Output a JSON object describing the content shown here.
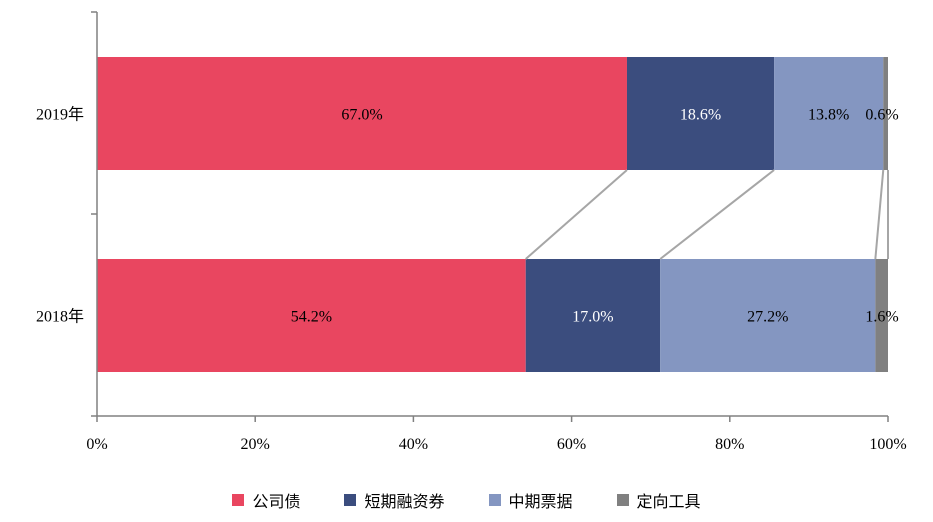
{
  "chart_data": {
    "type": "bar",
    "orientation": "horizontal",
    "stacked": true,
    "normalized": true,
    "categories": [
      "2019年",
      "2018年"
    ],
    "series": [
      {
        "name": "公司债",
        "color": "#e94660",
        "label_color": "#000000",
        "values": [
          67.0,
          54.2
        ],
        "labels": [
          "67.0%",
          "54.2%"
        ]
      },
      {
        "name": "短期融资券",
        "color": "#3b4d7e",
        "label_color": "#ffffff",
        "values": [
          18.6,
          17.0
        ],
        "labels": [
          "18.6%",
          "17.0%"
        ]
      },
      {
        "name": "中期票据",
        "color": "#8496c1",
        "label_color": "#000000",
        "values": [
          13.8,
          27.2
        ],
        "labels": [
          "13.8%",
          "27.2%"
        ]
      },
      {
        "name": "定向工具",
        "color": "#808080",
        "label_color": "#000000",
        "values": [
          0.6,
          1.6
        ],
        "labels": [
          "0.6%",
          "1.6%"
        ]
      }
    ],
    "xlim": [
      0,
      100
    ],
    "x_ticks": [
      "0%",
      "20%",
      "40%",
      "60%",
      "80%",
      "100%"
    ],
    "series_lines": true,
    "legend_position": "bottom",
    "grid": false
  }
}
